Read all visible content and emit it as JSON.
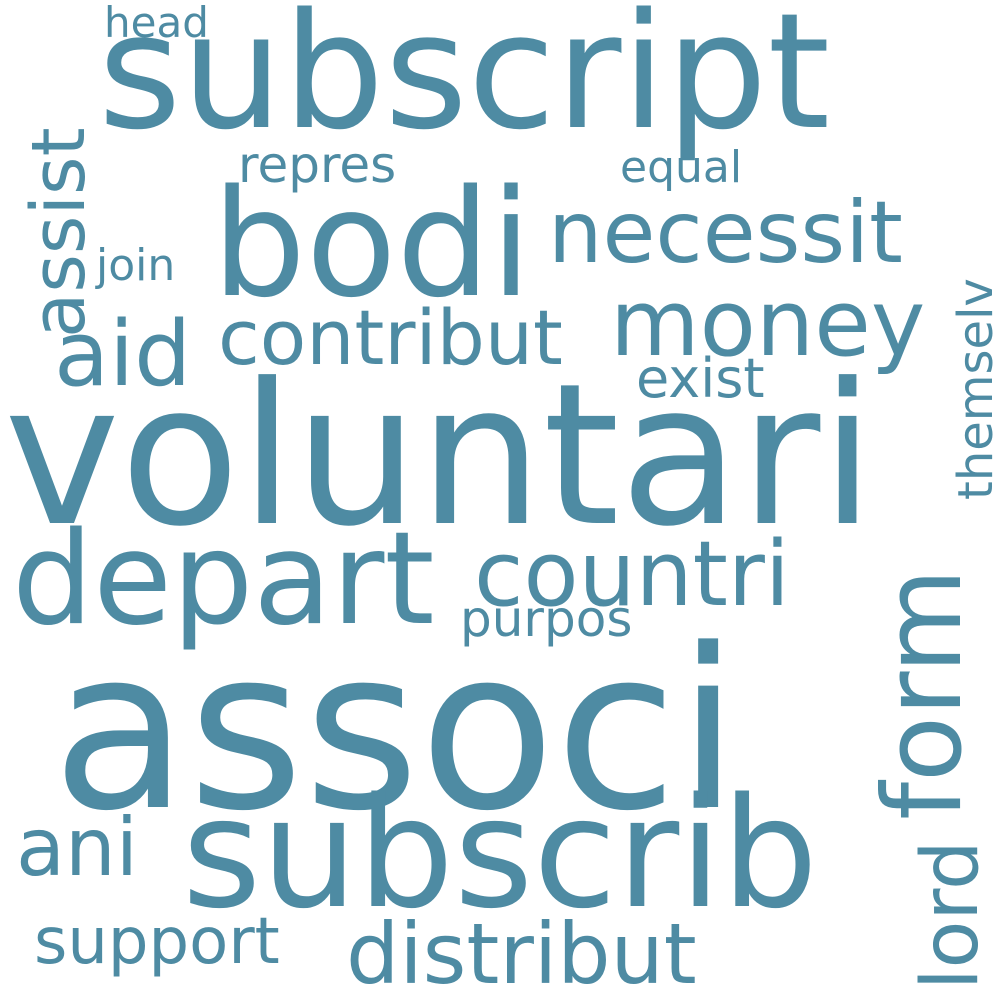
{
  "word_cloud": {
    "color": "#4e8ba3",
    "background": "#ffffff",
    "words": {
      "subscript": "subscript",
      "head": "head",
      "assist": "assist",
      "repres": "repres",
      "equal": "equal",
      "bodi": "bodi",
      "necessit": "necessit",
      "join": "join",
      "money": "money",
      "aid": "aid",
      "contribut": "contribut",
      "exist": "exist",
      "themselv": "themselv",
      "voluntari": "voluntari",
      "depart": "depart",
      "countri": "countri",
      "form": "form",
      "purpos": "purpos",
      "associ": "associ",
      "ani": "ani",
      "subscrib": "subscrib",
      "lord": "lord",
      "support": "support",
      "distribut": "distribut"
    }
  }
}
